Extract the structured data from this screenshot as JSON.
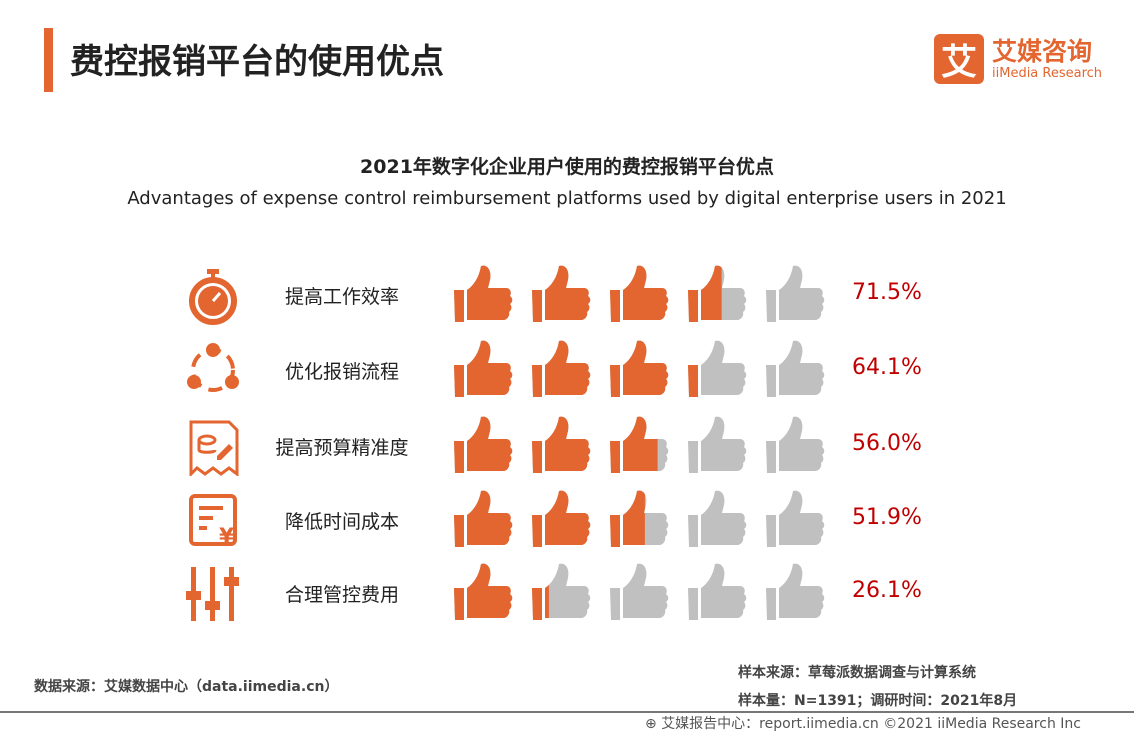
{
  "header": {
    "title": "费控报销平台的使用优点"
  },
  "logo": {
    "mark": "艾",
    "cn": "艾媒咨询",
    "en": "iiMedia Research"
  },
  "colors": {
    "accent": "#e3652f",
    "empty": "#c0c0c0",
    "value": "#c00000"
  },
  "chart_data": {
    "type": "bar",
    "style": "pictograph thumbs-up, 5 icons per row (each = 20%)",
    "title": "2021年数字化企业用户使用的费控报销平台优点",
    "subtitle": "Advantages of expense control reimbursement platforms used by digital enterprise users in 2021",
    "categories": [
      "提高工作效率",
      "优化报销流程",
      "提高预算精准度",
      "降低时间成本",
      "合理管控费用"
    ],
    "icons": [
      "stopwatch-icon",
      "cycle-icon",
      "budget-document-icon",
      "cost-ledger-icon",
      "sliders-icon"
    ],
    "values": [
      71.5,
      64.1,
      56.0,
      51.9,
      26.1
    ],
    "labels": [
      "71.5%",
      "64.1%",
      "56.0%",
      "51.9%",
      "26.1%"
    ],
    "ylim": [
      0,
      100
    ]
  },
  "footer": {
    "source": "数据来源：艾媒数据中心（data.iimedia.cn）",
    "sample_source": "样本来源：草莓派数据调查与计算系统",
    "sample_size": "样本量：N=1391；调研时间：2021年8月",
    "copyright": "艾媒报告中心：report.iimedia.cn   ©2021  iiMedia Research  Inc"
  }
}
